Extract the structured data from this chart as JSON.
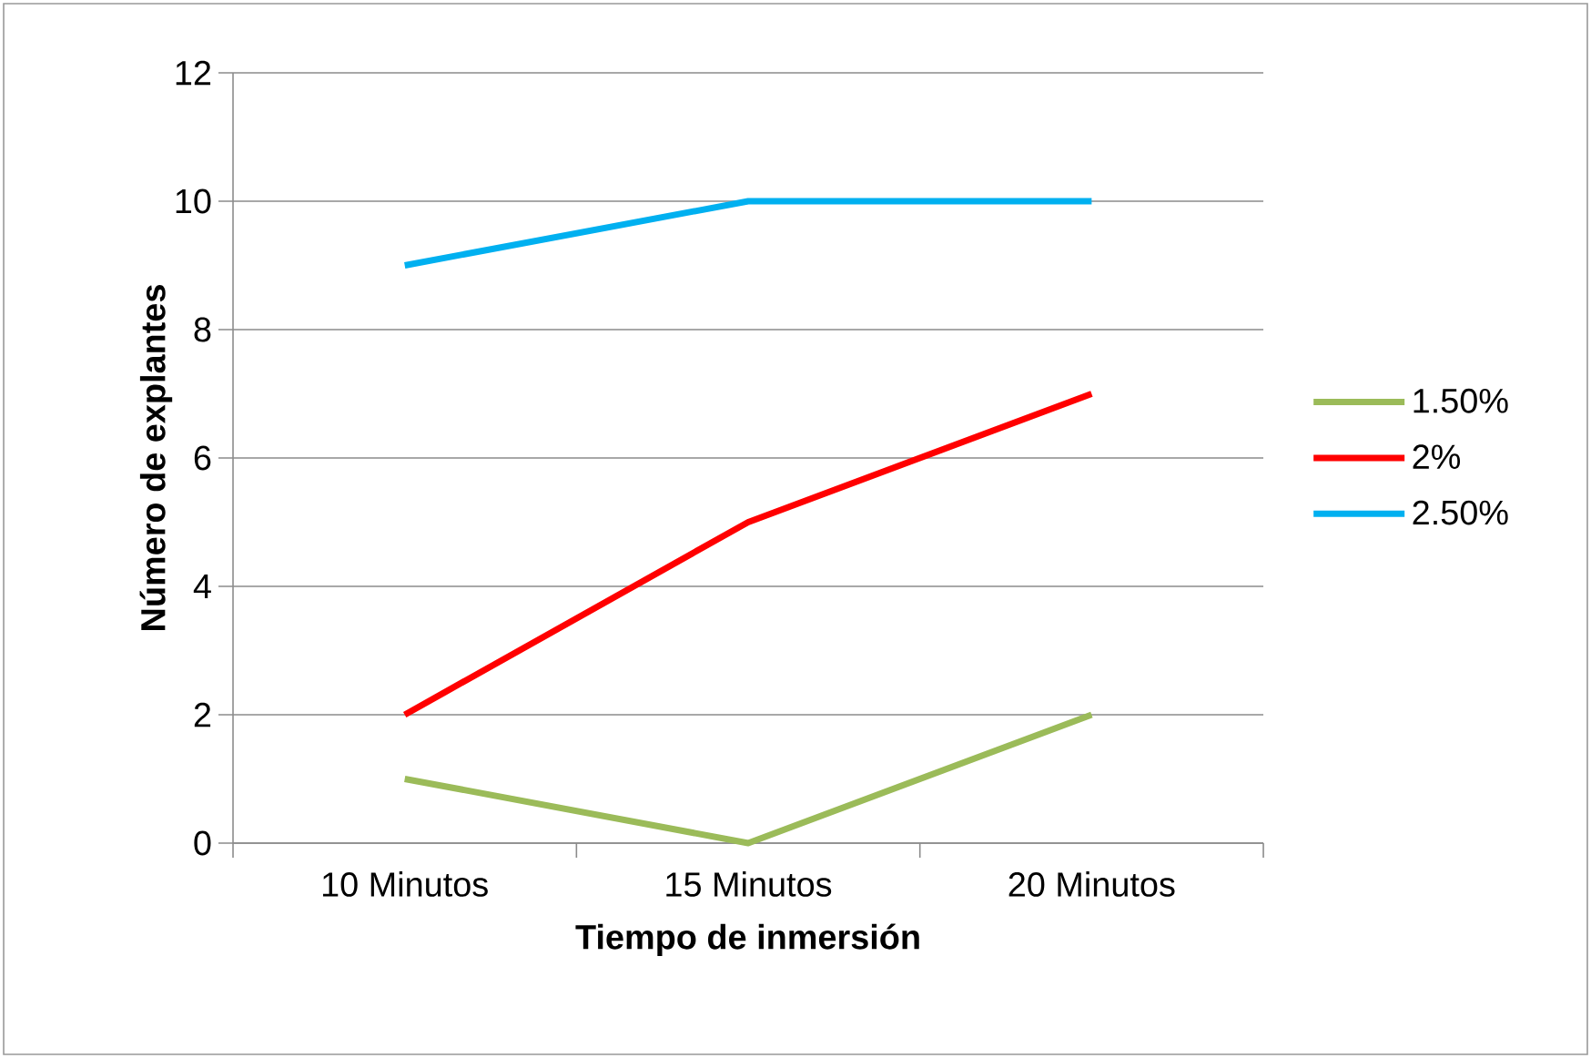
{
  "chart_data": {
    "type": "line",
    "xlabel": "Tiempo de inmersión",
    "ylabel": "Número de explantes",
    "categories": [
      "10 Minutos",
      "15 Minutos",
      "20 Minutos"
    ],
    "series": [
      {
        "name": "1.50%",
        "color": "#9bbb59",
        "values": [
          1,
          0,
          2
        ]
      },
      {
        "name": "2%",
        "color": "#ff0000",
        "values": [
          2,
          5,
          7
        ]
      },
      {
        "name": "2.50%",
        "color": "#00b0f0",
        "values": [
          9,
          10,
          10
        ]
      }
    ],
    "ylim": [
      0,
      12
    ],
    "yticks": [
      0,
      2,
      4,
      6,
      8,
      10,
      12
    ],
    "grid": "y",
    "legend": "right"
  }
}
